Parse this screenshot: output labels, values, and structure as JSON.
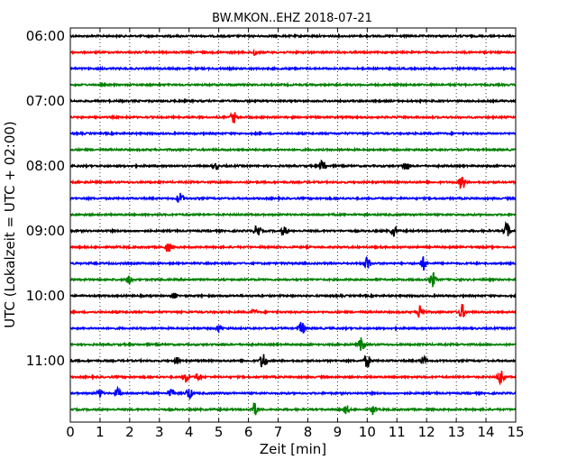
{
  "chart_data": {
    "type": "line",
    "title": "BW.MKON..EHZ 2018-07-21",
    "xlabel": "Zeit  [min]",
    "ylabel": "UTC (Lokalzeit = UTC + 02:00)",
    "xlim": [
      0,
      15
    ],
    "x_ticks": [
      "0",
      "1",
      "2",
      "3",
      "4",
      "5",
      "6",
      "7",
      "8",
      "9",
      "10",
      "11",
      "12",
      "13",
      "14",
      "15"
    ],
    "y_ticks": [
      "06:00",
      "07:00",
      "08:00",
      "09:00",
      "10:00",
      "11:00"
    ],
    "grid": "vertical dotted",
    "colors": [
      "#000000",
      "#ff0000",
      "#0000ff",
      "#008000"
    ],
    "series": [
      {
        "start": "06:00",
        "color": "#000000",
        "events": []
      },
      {
        "start": "06:15",
        "color": "#ff0000",
        "events": [
          {
            "min": 6.2,
            "amp": 0.25
          }
        ]
      },
      {
        "start": "06:30",
        "color": "#0000ff",
        "events": []
      },
      {
        "start": "06:45",
        "color": "#008000",
        "events": []
      },
      {
        "start": "07:00",
        "color": "#000000",
        "events": []
      },
      {
        "start": "07:15",
        "color": "#ff0000",
        "events": [
          {
            "min": 5.5,
            "amp": 0.4
          }
        ]
      },
      {
        "start": "07:30",
        "color": "#0000ff",
        "events": []
      },
      {
        "start": "07:45",
        "color": "#008000",
        "events": []
      },
      {
        "start": "08:00",
        "color": "#000000",
        "events": [
          {
            "min": 4.9,
            "amp": 0.25
          },
          {
            "min": 8.5,
            "amp": 0.4
          },
          {
            "min": 11.3,
            "amp": 0.35
          }
        ]
      },
      {
        "start": "08:15",
        "color": "#ff0000",
        "events": [
          {
            "min": 13.2,
            "amp": 0.5
          }
        ]
      },
      {
        "start": "08:30",
        "color": "#0000ff",
        "events": [
          {
            "min": 3.7,
            "amp": 0.4
          }
        ]
      },
      {
        "start": "08:45",
        "color": "#008000",
        "events": []
      },
      {
        "start": "09:00",
        "color": "#000000",
        "events": [
          {
            "min": 6.3,
            "amp": 0.45
          },
          {
            "min": 7.2,
            "amp": 0.3
          },
          {
            "min": 10.9,
            "amp": 0.35
          },
          {
            "min": 14.7,
            "amp": 0.55
          }
        ]
      },
      {
        "start": "09:15",
        "color": "#ff0000",
        "events": [
          {
            "min": 3.3,
            "amp": 0.35
          }
        ]
      },
      {
        "start": "09:30",
        "color": "#0000ff",
        "events": [
          {
            "min": 10.0,
            "amp": 0.45
          },
          {
            "min": 11.9,
            "amp": 0.45
          }
        ]
      },
      {
        "start": "09:45",
        "color": "#008000",
        "events": [
          {
            "min": 2.0,
            "amp": 0.3
          },
          {
            "min": 12.2,
            "amp": 0.5
          }
        ]
      },
      {
        "start": "10:00",
        "color": "#000000",
        "events": [
          {
            "min": 3.5,
            "amp": 0.2
          }
        ]
      },
      {
        "start": "10:15",
        "color": "#ff0000",
        "events": [
          {
            "min": 6.2,
            "amp": 0.2
          },
          {
            "min": 11.8,
            "amp": 0.55
          },
          {
            "min": 13.2,
            "amp": 0.5
          }
        ]
      },
      {
        "start": "10:30",
        "color": "#0000ff",
        "events": [
          {
            "min": 5.0,
            "amp": 0.25
          },
          {
            "min": 7.8,
            "amp": 0.45
          }
        ]
      },
      {
        "start": "10:45",
        "color": "#008000",
        "events": [
          {
            "min": 9.8,
            "amp": 0.45
          }
        ]
      },
      {
        "start": "11:00",
        "color": "#000000",
        "events": [
          {
            "min": 3.6,
            "amp": 0.25
          },
          {
            "min": 6.5,
            "amp": 0.6
          },
          {
            "min": 10.0,
            "amp": 0.45
          },
          {
            "min": 11.9,
            "amp": 0.3
          }
        ]
      },
      {
        "start": "11:15",
        "color": "#ff0000",
        "events": [
          {
            "min": 3.9,
            "amp": 0.35
          },
          {
            "min": 4.3,
            "amp": 0.3
          },
          {
            "min": 14.5,
            "amp": 0.55
          }
        ]
      },
      {
        "start": "11:30",
        "color": "#0000ff",
        "events": [
          {
            "min": 1.0,
            "amp": 0.3
          },
          {
            "min": 1.6,
            "amp": 0.35
          },
          {
            "min": 3.4,
            "amp": 0.3
          },
          {
            "min": 4.0,
            "amp": 0.4
          }
        ]
      },
      {
        "start": "11:45",
        "color": "#008000",
        "events": [
          {
            "min": 6.2,
            "amp": 0.45
          },
          {
            "min": 9.3,
            "amp": 0.3
          },
          {
            "min": 10.2,
            "amp": 0.35
          }
        ]
      }
    ]
  }
}
